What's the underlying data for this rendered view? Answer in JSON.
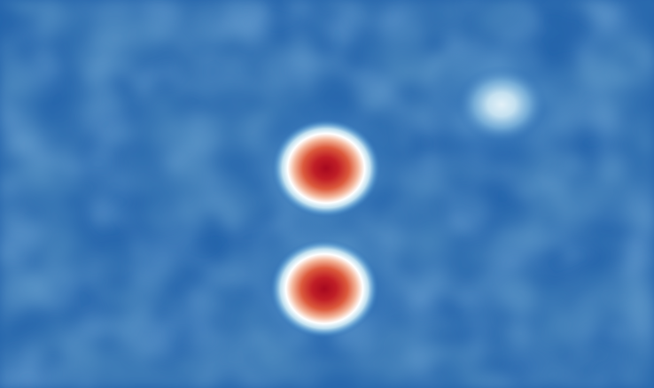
{
  "image": {
    "kind": "false-color intensity map",
    "colormap": [
      "#2a6bb3",
      "#3f86c4",
      "#8fc0e0",
      "#ffffff",
      "#f0a27e",
      "#d8452e",
      "#a8081f"
    ],
    "background_color": "#2462a8",
    "sources": [
      {
        "id": "source-upper",
        "peak_color": "#a8081f",
        "intensity": "high"
      },
      {
        "id": "source-lower",
        "peak_color": "#a8081f",
        "intensity": "high"
      },
      {
        "id": "source-faint",
        "peak_color": "#d6eaf5",
        "intensity": "low"
      }
    ]
  }
}
